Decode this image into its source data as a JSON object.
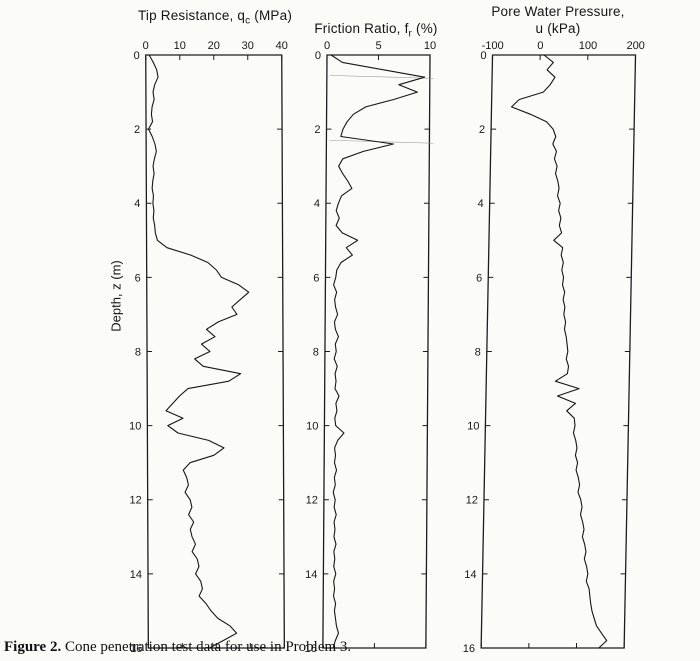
{
  "figure_caption": {
    "label": "Figure 2.",
    "text": " Cone penetration test data for use in Problem 3."
  },
  "chart_data": {
    "type": "line",
    "layout": "three vertical depth-profile panels, depth axis inverted (0 at top), x-axis drawn along top of each box",
    "ylabel": "Depth, z (m)",
    "ylim": [
      0,
      16
    ],
    "yticks": [
      0,
      2,
      4,
      6,
      8,
      10,
      12,
      14,
      16
    ],
    "depths": [
      0,
      0.2,
      0.4,
      0.6,
      0.8,
      1,
      1.2,
      1.4,
      1.6,
      1.8,
      2,
      2.2,
      2.4,
      2.6,
      2.8,
      3,
      3.2,
      3.4,
      3.6,
      3.8,
      4,
      4.2,
      4.4,
      4.6,
      4.8,
      5,
      5.2,
      5.4,
      5.6,
      5.8,
      6,
      6.2,
      6.4,
      6.6,
      6.8,
      7,
      7.2,
      7.4,
      7.6,
      7.8,
      8,
      8.2,
      8.4,
      8.6,
      8.8,
      9,
      9.2,
      9.4,
      9.6,
      9.8,
      10,
      10.2,
      10.4,
      10.6,
      10.8,
      11,
      11.2,
      11.4,
      11.6,
      11.8,
      12,
      12.2,
      12.4,
      12.6,
      12.8,
      13,
      13.2,
      13.4,
      13.6,
      13.8,
      14,
      14.2,
      14.4,
      14.6,
      14.8,
      15,
      15.2,
      15.4,
      15.6,
      15.8,
      16
    ],
    "panels": [
      {
        "id": "tip-resistance",
        "title_parts": {
          "pre": "Tip Resistance, q",
          "sub": "c",
          "post": " (MPa)"
        },
        "xlim": [
          0,
          40
        ],
        "xticks": [
          0,
          10,
          20,
          30,
          40
        ],
        "values": [
          1,
          2.2,
          3.2,
          3.6,
          2.6,
          2.1,
          2.4,
          1.8,
          1.6,
          1.9,
          0.7,
          1.8,
          2.6,
          3,
          2.4,
          2,
          2.3,
          1.9,
          1.7,
          2.1,
          1.9,
          2.2,
          2,
          2.4,
          2.6,
          3.2,
          6,
          13,
          18,
          20.5,
          22,
          27,
          30,
          27.5,
          25,
          26.5,
          21,
          17.5,
          20,
          16,
          18.5,
          14,
          16.5,
          27.5,
          24,
          12,
          9.5,
          7.5,
          5.5,
          10.5,
          6,
          9,
          18,
          22.5,
          19.5,
          12.5,
          10.5,
          11.5,
          12,
          11,
          12.5,
          13,
          12,
          13.5,
          12.5,
          13,
          14,
          13,
          14.5,
          15,
          14,
          15.5,
          16,
          15,
          17,
          18.5,
          20.5,
          24,
          26,
          22,
          18
        ]
      },
      {
        "id": "friction-ratio",
        "title_parts": {
          "pre": "Friction Ratio, f",
          "sub": "r",
          "post": " (%)"
        },
        "xlim": [
          0,
          10
        ],
        "xticks": [
          0,
          5,
          10
        ],
        "artifact_depths": [
          0.55,
          2.3
        ],
        "values": [
          0.4,
          1.5,
          5.5,
          9.5,
          7,
          8.8,
          6.5,
          3.8,
          2.6,
          2,
          1.6,
          1.4,
          6.5,
          3.6,
          1.6,
          1.2,
          1.6,
          2.1,
          2.5,
          1.5,
          1.2,
          1,
          1.3,
          1,
          1.6,
          3.1,
          2,
          2.6,
          1.5,
          1.1,
          1,
          0.8,
          1.1,
          0.9,
          1,
          1.2,
          0.9,
          1,
          1.3,
          1,
          1.1,
          0.9,
          1.2,
          1,
          1.1,
          1,
          1.4,
          1.1,
          1.2,
          1,
          1.1,
          1.9,
          1.3,
          1,
          1.1,
          1,
          1.2,
          1,
          1.1,
          0.9,
          1.1,
          1,
          1.2,
          1,
          1.1,
          1,
          1.2,
          1,
          1.1,
          1,
          1.2,
          1,
          1.1,
          1,
          1.2,
          1.1,
          1.2,
          1.3,
          1.5,
          1.2,
          1
        ]
      },
      {
        "id": "pore-pressure",
        "title_parts": {
          "line1": "Pore Water Pressure,",
          "line2": "u (kPa)"
        },
        "xlim": [
          -100,
          200
        ],
        "xticks": [
          -100,
          0,
          100,
          200
        ],
        "values": [
          8,
          28,
          15,
          32,
          22,
          8,
          -42,
          -58,
          -18,
          16,
          30,
          36,
          30,
          38,
          34,
          40,
          37,
          42,
          45,
          42,
          48,
          45,
          50,
          47,
          52,
          36,
          55,
          52,
          57,
          54,
          58,
          56,
          61,
          58,
          62,
          60,
          64,
          62,
          66,
          68,
          70,
          67,
          72,
          70,
          45,
          95,
          50,
          88,
          70,
          86,
          88,
          85,
          90,
          93,
          90,
          95,
          92,
          97,
          100,
          97,
          103,
          106,
          103,
          108,
          111,
          108,
          113,
          116,
          113,
          118,
          121,
          118,
          124,
          126,
          128,
          131,
          136,
          141,
          152,
          163,
          147
        ]
      }
    ]
  }
}
